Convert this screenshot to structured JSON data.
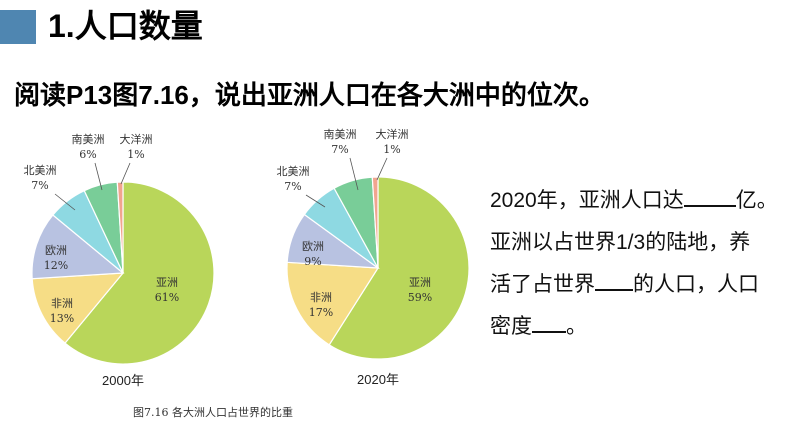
{
  "slide": {
    "title": "1.人口数量",
    "subtitle": "阅读P13图7.16，说出亚洲人口在各大洲中的位次。",
    "caption": "图7.16   各大洲人口占世界的比重"
  },
  "chart_data": [
    {
      "type": "pie",
      "xlabel": "2000年",
      "series": [
        {
          "label": "亚洲",
          "value": 61,
          "display": "61%",
          "color": "#b9d65a"
        },
        {
          "label": "非洲",
          "value": 13,
          "display": "13%",
          "color": "#f6dd86"
        },
        {
          "label": "欧洲",
          "value": 12,
          "display": "12%",
          "color": "#b8c2e1"
        },
        {
          "label": "北美洲",
          "value": 7,
          "display": "7%",
          "color": "#8ed9e2"
        },
        {
          "label": "南美洲",
          "value": 6,
          "display": "6%",
          "color": "#79cd98"
        },
        {
          "label": "大洋洲",
          "value": 1,
          "display": "1%",
          "color": "#f1a58f"
        }
      ]
    },
    {
      "type": "pie",
      "xlabel": "2020年",
      "series": [
        {
          "label": "亚洲",
          "value": 59,
          "display": "59%",
          "color": "#b9d65a"
        },
        {
          "label": "非洲",
          "value": 17,
          "display": "17%",
          "color": "#f6dd86"
        },
        {
          "label": "欧洲",
          "value": 9,
          "display": "9%",
          "color": "#b8c2e1"
        },
        {
          "label": "北美洲",
          "value": 7,
          "display": "7%",
          "color": "#8ed9e2"
        },
        {
          "label": "南美洲",
          "value": 7,
          "display": "7%",
          "color": "#79cd98"
        },
        {
          "label": "大洋洲",
          "value": 1,
          "display": "1%",
          "color": "#f1a58f"
        }
      ]
    }
  ],
  "question": {
    "line1_a": "2020年，亚洲人口达",
    "line1_b": "亿。",
    "line2": "亚洲以占世界1/3的陆地，养",
    "line3_a": "活了占世界",
    "line3_b": "的人口，人口",
    "line4_a": "密度",
    "line4_b": "。"
  }
}
